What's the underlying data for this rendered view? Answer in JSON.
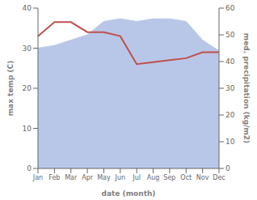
{
  "chart_data": {
    "type": "line",
    "xlabel": "date (month)",
    "ylabel": "max temp (C)",
    "y2label": "med. precipitation (kg/m2)",
    "categories": [
      "Jan",
      "Feb",
      "Mar",
      "Apr",
      "May",
      "Jun",
      "Jul",
      "Aug",
      "Sep",
      "Oct",
      "Nov",
      "Dec"
    ],
    "series": [
      {
        "type": "area",
        "axis": "y2",
        "color": "#b8c7e8",
        "values": [
          45.0,
          46.0,
          48.0,
          50.0,
          55.0,
          56.0,
          55.0,
          56.0,
          56.0,
          55.0,
          48.0,
          44.0
        ]
      },
      {
        "type": "line",
        "color": "#c0504d",
        "values": [
          33.0,
          36.5,
          36.5,
          34.0,
          34.0,
          33.0,
          26.0,
          26.5,
          27.0,
          27.5,
          29.0,
          29.0
        ]
      }
    ],
    "ylim": [
      0,
      40
    ],
    "yticks": [
      0,
      10,
      20,
      30,
      40
    ],
    "y2lim": [
      0,
      60
    ],
    "y2ticks": [
      0,
      10,
      20,
      30,
      40,
      50,
      60
    ],
    "grid": false
  }
}
